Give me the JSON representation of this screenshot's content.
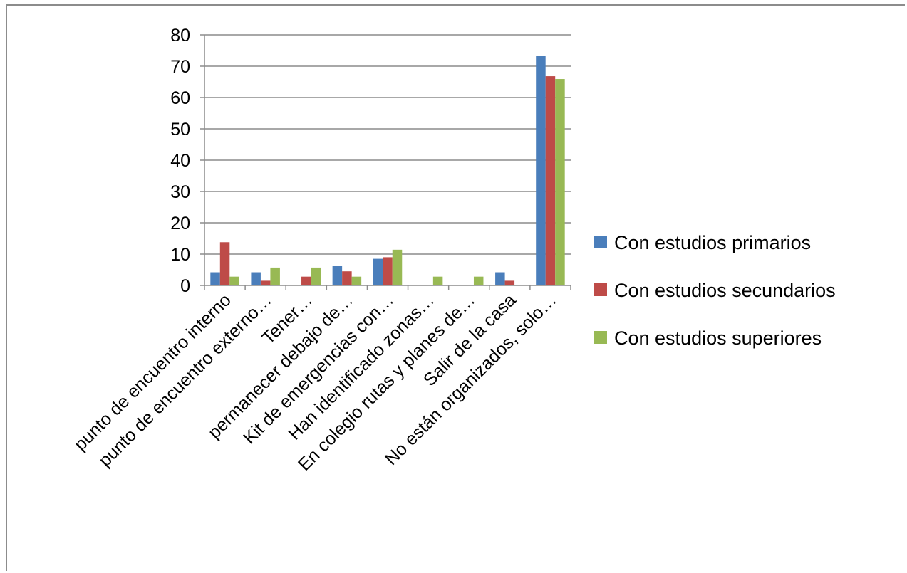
{
  "chart_data": {
    "type": "bar",
    "title": "",
    "xlabel": "",
    "ylabel": "",
    "ylim": [
      0,
      80
    ],
    "yticks": [
      0,
      10,
      20,
      30,
      40,
      50,
      60,
      70,
      80
    ],
    "grid": true,
    "legend_position": "right",
    "categories": [
      "punto de encuentro interno",
      "punto de encuentro externo…",
      "Tener…",
      "permanecer debajo de…",
      "Kit de emergencias con…",
      "Han identificado zonas…",
      "En colegio rutas y planes de…",
      "Salir de la casa",
      "No están organizados, solo…"
    ],
    "series": [
      {
        "name": "Con estudios primarios",
        "color": "#4a7ebb",
        "values": [
          4.2,
          4.2,
          0,
          6.2,
          8.5,
          0,
          0,
          4.2,
          73.2
        ]
      },
      {
        "name": "Con estudios secundarios",
        "color": "#be4b48",
        "values": [
          13.8,
          1.5,
          2.8,
          4.5,
          9.0,
          0,
          0,
          1.5,
          66.8
        ]
      },
      {
        "name": "Con estudios superiores",
        "color": "#98b954",
        "values": [
          2.8,
          5.7,
          5.7,
          2.8,
          11.4,
          2.8,
          2.8,
          0,
          65.9
        ]
      }
    ]
  }
}
